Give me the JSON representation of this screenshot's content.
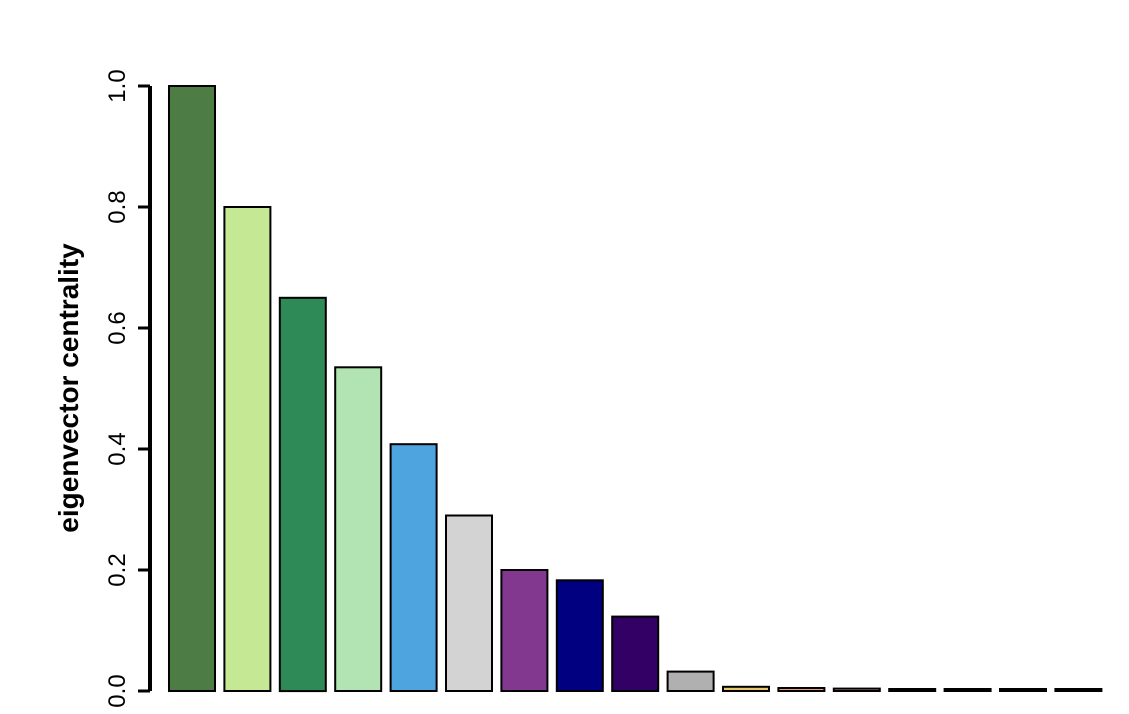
{
  "chart_data": {
    "type": "bar",
    "title": "",
    "xlabel": "",
    "ylabel": "eigenvector centrality",
    "ylim": [
      0,
      1.0
    ],
    "yticks": [
      "0.0",
      "0.2",
      "0.4",
      "0.6",
      "0.8",
      "1.0"
    ],
    "grid": false,
    "legend": "none",
    "values": [
      1.0,
      0.8,
      0.65,
      0.535,
      0.408,
      0.29,
      0.2,
      0.183,
      0.123,
      0.032,
      0.007,
      0.005,
      0.004,
      0.003,
      0.003,
      0.002,
      0.002
    ],
    "colors": [
      "#4e7c45",
      "#c5e895",
      "#2e8b57",
      "#b2e3b2",
      "#4ea4df",
      "#d3d3d3",
      "#83388f",
      "#000080",
      "#330066",
      "#b0b0b0",
      "#e8c76a",
      "#e8a07a",
      "#e89a9a",
      "#6fa8c8",
      "#8a7a50",
      "#555555",
      "#333333"
    ]
  }
}
